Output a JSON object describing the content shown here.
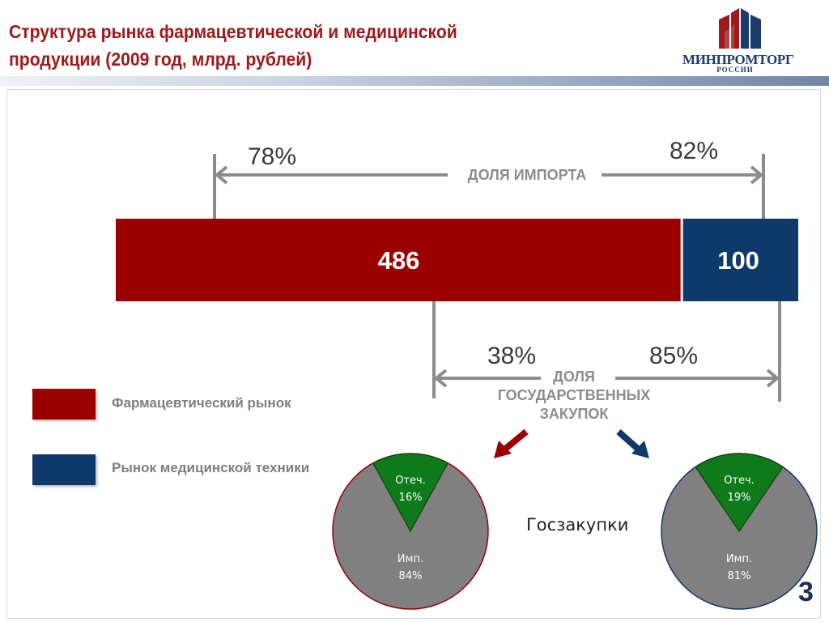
{
  "header": {
    "title_line1": "Структура рынка фармацевтической и медицинской",
    "title_line2": "продукции (2009 год, млрд. рублей)",
    "logo_text": "МИНПРОМТОРГ",
    "logo_subtext": "РОССИИ"
  },
  "colors": {
    "pharma": "#9b0000",
    "medtech": "#0d3a6b",
    "import_slice": "#808080",
    "domestic_slice": "#0f7a1a",
    "bracket": "#8c8c8c",
    "accent_title": "#a01a1c"
  },
  "icons": [
    "arrow-down-left-icon",
    "arrow-down-right-icon"
  ],
  "legend": {
    "pharma_label": "Фармацевтический рынок",
    "medtech_label": "Рынок медицинской техники"
  },
  "gos_label": "Госзакупки",
  "page_number": "3",
  "chart_data": [
    {
      "type": "bar",
      "orientation": "horizontal-stacked",
      "series": [
        {
          "name": "Фармацевтический рынок",
          "values": [
            486
          ],
          "label": "486"
        },
        {
          "name": "Рынок медицинской техники",
          "values": [
            100
          ],
          "label": "100"
        }
      ],
      "annotations": {
        "import_share": {
          "label": "ДОЛЯ ИМПОРТА",
          "pharma": "78%",
          "medtech": "82%"
        },
        "gov_procurement_share": {
          "label_lines": [
            "ДОЛЯ",
            "ГОСУДАРСТВЕННЫХ",
            "ЗАКУПОК"
          ],
          "pharma": "38%",
          "medtech": "85%"
        }
      }
    },
    {
      "type": "pie",
      "slices": [
        {
          "label": "Отеч.",
          "value": 16,
          "value_label": "16%"
        },
        {
          "label": "Имп.",
          "value": 84,
          "value_label": "84%"
        }
      ]
    },
    {
      "type": "pie",
      "slices": [
        {
          "label": "Отеч.",
          "value": 19,
          "value_label": "19%"
        },
        {
          "label": "Имп.",
          "value": 81,
          "value_label": "81%"
        }
      ]
    }
  ]
}
